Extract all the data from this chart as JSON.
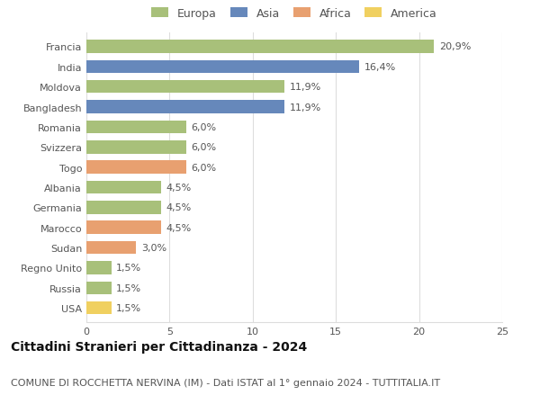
{
  "countries": [
    "Francia",
    "India",
    "Moldova",
    "Bangladesh",
    "Romania",
    "Svizzera",
    "Togo",
    "Albania",
    "Germania",
    "Marocco",
    "Sudan",
    "Regno Unito",
    "Russia",
    "USA"
  ],
  "values": [
    20.9,
    16.4,
    11.9,
    11.9,
    6.0,
    6.0,
    6.0,
    4.5,
    4.5,
    4.5,
    3.0,
    1.5,
    1.5,
    1.5
  ],
  "labels": [
    "20,9%",
    "16,4%",
    "11,9%",
    "11,9%",
    "6,0%",
    "6,0%",
    "6,0%",
    "4,5%",
    "4,5%",
    "4,5%",
    "3,0%",
    "1,5%",
    "1,5%",
    "1,5%"
  ],
  "continents": [
    "Europa",
    "Asia",
    "Europa",
    "Asia",
    "Europa",
    "Europa",
    "Africa",
    "Europa",
    "Europa",
    "Africa",
    "Africa",
    "Europa",
    "Europa",
    "America"
  ],
  "continent_colors": {
    "Europa": "#a8c07a",
    "Asia": "#6688bb",
    "Africa": "#e8a070",
    "America": "#f0d060"
  },
  "title": "Cittadini Stranieri per Cittadinanza - 2024",
  "subtitle": "COMUNE DI ROCCHETTA NERVINA (IM) - Dati ISTAT al 1° gennaio 2024 - TUTTITALIA.IT",
  "xlim": [
    0,
    25
  ],
  "xticks": [
    0,
    5,
    10,
    15,
    20,
    25
  ],
  "background_color": "#ffffff",
  "grid_color": "#dddddd",
  "bar_height": 0.65,
  "title_fontsize": 10,
  "subtitle_fontsize": 8,
  "label_fontsize": 8,
  "tick_fontsize": 8,
  "legend_fontsize": 9
}
